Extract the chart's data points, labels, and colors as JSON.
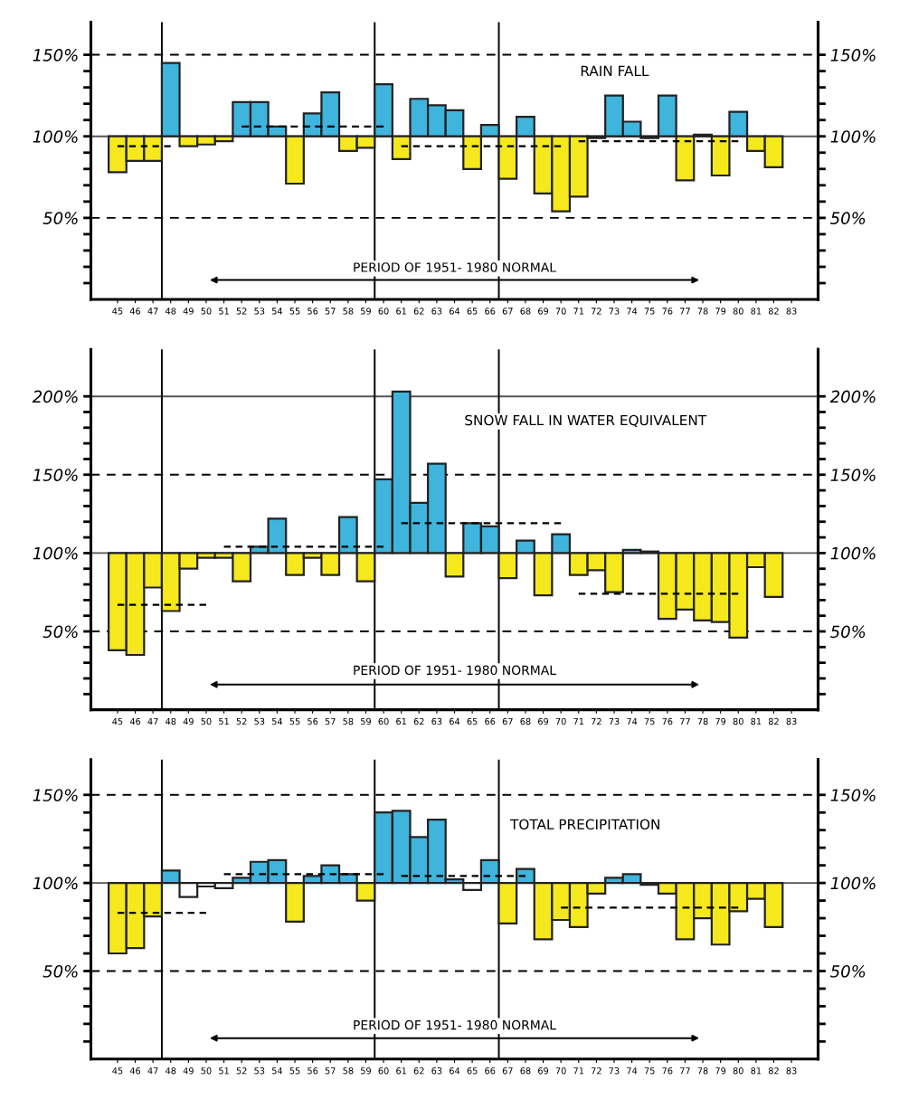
{
  "chart_data": [
    {
      "type": "bar",
      "title": "RAIN FALL",
      "annotations": [
        "PERIOD OF 1951- 1980 NORMAL"
      ],
      "categories": [
        "45",
        "46",
        "47",
        "48",
        "49",
        "50",
        "51",
        "52",
        "53",
        "54",
        "55",
        "56",
        "57",
        "58",
        "59",
        "60",
        "61",
        "62",
        "63",
        "64",
        "65",
        "66",
        "67",
        "68",
        "69",
        "70",
        "71",
        "72",
        "73",
        "74",
        "75",
        "76",
        "77",
        "78",
        "79",
        "80",
        "81",
        "82",
        "83"
      ],
      "series": [
        {
          "type": "bar",
          "values": [
            -22,
            -15,
            -15,
            45,
            -6,
            -5,
            -3,
            21,
            21,
            6,
            -29,
            14,
            27,
            -9,
            -7,
            32,
            -14,
            23,
            19,
            16,
            -20,
            7,
            -26,
            12,
            -35,
            -46,
            -37,
            -1,
            25,
            9,
            -1,
            25,
            -27,
            1,
            -24,
            15,
            -9,
            -19,
            null
          ],
          "base": [
            100,
            100,
            100,
            100,
            100,
            100,
            100,
            100,
            100,
            100,
            100,
            100,
            100,
            100,
            100,
            100,
            100,
            100,
            100,
            100,
            100,
            100,
            100,
            100,
            100,
            100,
            100,
            100,
            100,
            100,
            100,
            100,
            100,
            100,
            100,
            100,
            100,
            100,
            null
          ],
          "colors": [
            "#f5e81c",
            "#f5e81c",
            "#f5e81c",
            "#3fb4dc",
            "#f5e81c",
            "#f5e81c",
            "#f5e81c",
            "#3fb4dc",
            "#3fb4dc",
            "#3fb4dc",
            "#f5e81c",
            "#3fb4dc",
            "#3fb4dc",
            "#f5e81c",
            "#f5e81c",
            "#3fb4dc",
            "#f5e81c",
            "#3fb4dc",
            "#3fb4dc",
            "#3fb4dc",
            "#f5e81c",
            "#3fb4dc",
            "#f5e81c",
            "#3fb4dc",
            "#f5e81c",
            "#f5e81c",
            "#f5e81c",
            "#f5e81c",
            "#3fb4dc",
            "#3fb4dc",
            "#f5e81c",
            "#3fb4dc",
            "#f5e81c",
            "#3fb4dc",
            "#f5e81c",
            "#3fb4dc",
            "#f5e81c",
            "#f5e81c",
            null
          ]
        },
        {
          "type": "line",
          "x": [
            "45",
            "48"
          ],
          "values": [
            94,
            94
          ],
          "color": "#000000",
          "line_style": "dashed"
        },
        {
          "type": "line",
          "x": [
            "52",
            "60"
          ],
          "values": [
            106,
            106
          ],
          "color": "#000000",
          "line_style": "dashed"
        },
        {
          "type": "line",
          "x": [
            "61",
            "70"
          ],
          "values": [
            94,
            94
          ],
          "color": "#000000",
          "line_style": "dashed"
        },
        {
          "type": "line",
          "x": [
            "71",
            "80"
          ],
          "values": [
            97,
            97
          ],
          "color": "#000000",
          "line_style": "dashed"
        }
      ],
      "ylim": [
        0,
        170
      ],
      "yticks": [
        {
          "value": 10,
          "label": null
        },
        {
          "value": 20,
          "label": null
        },
        {
          "value": 30,
          "label": null
        },
        {
          "value": 40,
          "label": null
        },
        {
          "value": 50,
          "label": "50%"
        },
        {
          "value": 60,
          "label": null
        },
        {
          "value": 70,
          "label": null
        },
        {
          "value": 80,
          "label": null
        },
        {
          "value": 90,
          "label": null
        },
        {
          "value": 100,
          "label": "100%"
        },
        {
          "value": 110,
          "label": null
        },
        {
          "value": 120,
          "label": null
        },
        {
          "value": 130,
          "label": null
        },
        {
          "value": 140,
          "label": null
        },
        {
          "value": 150,
          "label": "150%"
        }
      ],
      "y2lim": [
        0,
        170
      ],
      "y2ticks": [
        {
          "value": 10,
          "label": null
        },
        {
          "value": 20,
          "label": null
        },
        {
          "value": 30,
          "label": null
        },
        {
          "value": 40,
          "label": null
        },
        {
          "value": 50,
          "label": "50%"
        },
        {
          "value": 60,
          "label": null
        },
        {
          "value": 70,
          "label": null
        },
        {
          "value": 80,
          "label": null
        },
        {
          "value": 90,
          "label": null
        },
        {
          "value": 100,
          "label": "100%"
        },
        {
          "value": 110,
          "label": null
        },
        {
          "value": 120,
          "label": null
        },
        {
          "value": 130,
          "label": null
        },
        {
          "value": 140,
          "label": null
        },
        {
          "value": 150,
          "label": "150%"
        }
      ],
      "ref_lines": [
        {
          "axis": "y",
          "value": 150,
          "line_style": "dashed",
          "color": "#000000"
        },
        {
          "axis": "y",
          "value": 100,
          "line_style": "solid",
          "color": "#555555"
        },
        {
          "axis": "y",
          "value": 50,
          "line_style": "dashed",
          "color": "#000000"
        },
        {
          "axis": "x",
          "value": "48",
          "line_style": "solid",
          "color": "#000000"
        },
        {
          "axis": "x",
          "value": "60",
          "line_style": "solid",
          "color": "#000000"
        },
        {
          "axis": "x",
          "value": "67",
          "line_style": "solid",
          "color": "#000000"
        }
      ]
    },
    {
      "type": "bar",
      "title": "SNOW FALL IN WATER EQUIVALENT",
      "annotations": [
        "PERIOD OF 1951- 1980 NORMAL"
      ],
      "categories": [
        "45",
        "46",
        "47",
        "48",
        "49",
        "50",
        "51",
        "52",
        "53",
        "54",
        "55",
        "56",
        "57",
        "58",
        "59",
        "60",
        "61",
        "62",
        "63",
        "64",
        "65",
        "66",
        "67",
        "68",
        "69",
        "70",
        "71",
        "72",
        "73",
        "74",
        "75",
        "76",
        "77",
        "78",
        "79",
        "80",
        "81",
        "82",
        "83"
      ],
      "series": [
        {
          "type": "bar",
          "values": [
            -62,
            -65,
            -22,
            -37,
            -10,
            -3,
            -3,
            -18,
            4,
            22,
            -14,
            -3,
            -14,
            23,
            -18,
            47,
            103,
            32,
            57,
            -15,
            19,
            17,
            -16,
            8,
            -27,
            12,
            -14,
            -11,
            -25,
            2,
            1,
            -42,
            -36,
            -43,
            -44,
            -54,
            -9,
            -28,
            null
          ],
          "base": [
            100,
            100,
            100,
            100,
            100,
            100,
            100,
            100,
            100,
            100,
            100,
            100,
            100,
            100,
            100,
            100,
            100,
            100,
            100,
            100,
            100,
            100,
            100,
            100,
            100,
            100,
            100,
            100,
            100,
            100,
            100,
            100,
            100,
            100,
            100,
            100,
            100,
            100,
            null
          ],
          "colors": [
            "#f5e81c",
            "#f5e81c",
            "#f5e81c",
            "#f5e81c",
            "#f5e81c",
            "#f5e81c",
            "#f5e81c",
            "#f5e81c",
            "#3fb4dc",
            "#3fb4dc",
            "#f5e81c",
            "#f5e81c",
            "#f5e81c",
            "#3fb4dc",
            "#f5e81c",
            "#3fb4dc",
            "#3fb4dc",
            "#3fb4dc",
            "#3fb4dc",
            "#f5e81c",
            "#3fb4dc",
            "#3fb4dc",
            "#f5e81c",
            "#3fb4dc",
            "#f5e81c",
            "#3fb4dc",
            "#f5e81c",
            "#f5e81c",
            "#f5e81c",
            "#3fb4dc",
            "#3fb4dc",
            "#f5e81c",
            "#f5e81c",
            "#f5e81c",
            "#f5e81c",
            "#f5e81c",
            "#f5e81c",
            "#f5e81c",
            null
          ]
        },
        {
          "type": "line",
          "x": [
            "45",
            "50"
          ],
          "values": [
            67,
            67
          ],
          "color": "#000000",
          "line_style": "dashed"
        },
        {
          "type": "line",
          "x": [
            "51",
            "60"
          ],
          "values": [
            104,
            104
          ],
          "color": "#000000",
          "line_style": "dashed"
        },
        {
          "type": "line",
          "x": [
            "61",
            "70"
          ],
          "values": [
            119,
            119
          ],
          "color": "#000000",
          "line_style": "dashed"
        },
        {
          "type": "line",
          "x": [
            "71",
            "80"
          ],
          "values": [
            74,
            74
          ],
          "color": "#000000",
          "line_style": "dashed"
        }
      ],
      "ylim": [
        0,
        230
      ],
      "yticks": [
        {
          "value": 10,
          "label": null
        },
        {
          "value": 20,
          "label": null
        },
        {
          "value": 30,
          "label": null
        },
        {
          "value": 40,
          "label": null
        },
        {
          "value": 50,
          "label": "50%"
        },
        {
          "value": 60,
          "label": null
        },
        {
          "value": 70,
          "label": null
        },
        {
          "value": 80,
          "label": null
        },
        {
          "value": 90,
          "label": null
        },
        {
          "value": 100,
          "label": "100%"
        },
        {
          "value": 110,
          "label": null
        },
        {
          "value": 120,
          "label": null
        },
        {
          "value": 130,
          "label": null
        },
        {
          "value": 140,
          "label": null
        },
        {
          "value": 150,
          "label": "150%"
        },
        {
          "value": 160,
          "label": null
        },
        {
          "value": 170,
          "label": null
        },
        {
          "value": 180,
          "label": null
        },
        {
          "value": 190,
          "label": null
        },
        {
          "value": 200,
          "label": "200%"
        }
      ],
      "y2lim": [
        0,
        230
      ],
      "y2ticks": [
        {
          "value": 10,
          "label": null
        },
        {
          "value": 20,
          "label": null
        },
        {
          "value": 30,
          "label": null
        },
        {
          "value": 40,
          "label": null
        },
        {
          "value": 50,
          "label": "50%"
        },
        {
          "value": 60,
          "label": null
        },
        {
          "value": 70,
          "label": null
        },
        {
          "value": 80,
          "label": null
        },
        {
          "value": 90,
          "label": null
        },
        {
          "value": 100,
          "label": "100%"
        },
        {
          "value": 110,
          "label": null
        },
        {
          "value": 120,
          "label": null
        },
        {
          "value": 130,
          "label": null
        },
        {
          "value": 140,
          "label": null
        },
        {
          "value": 150,
          "label": "150%"
        },
        {
          "value": 160,
          "label": null
        },
        {
          "value": 170,
          "label": null
        },
        {
          "value": 180,
          "label": null
        },
        {
          "value": 190,
          "label": null
        },
        {
          "value": 200,
          "label": "200%"
        }
      ],
      "ref_lines": [
        {
          "axis": "y",
          "value": 200,
          "line_style": "solid",
          "color": "#555555"
        },
        {
          "axis": "y",
          "value": 150,
          "line_style": "dashed",
          "color": "#000000"
        },
        {
          "axis": "y",
          "value": 100,
          "line_style": "solid",
          "color": "#555555"
        },
        {
          "axis": "y",
          "value": 50,
          "line_style": "dashed",
          "color": "#000000"
        },
        {
          "axis": "x",
          "value": "48",
          "line_style": "solid",
          "color": "#000000"
        },
        {
          "axis": "x",
          "value": "60",
          "line_style": "solid",
          "color": "#000000"
        },
        {
          "axis": "x",
          "value": "67",
          "line_style": "solid",
          "color": "#000000"
        }
      ]
    },
    {
      "type": "bar",
      "title": "TOTAL PRECIPITATION",
      "annotations": [
        "PERIOD OF 1951- 1980 NORMAL"
      ],
      "categories": [
        "45",
        "46",
        "47",
        "48",
        "49",
        "50",
        "51",
        "52",
        "53",
        "54",
        "55",
        "56",
        "57",
        "58",
        "59",
        "60",
        "61",
        "62",
        "63",
        "64",
        "65",
        "66",
        "67",
        "68",
        "69",
        "70",
        "71",
        "72",
        "73",
        "74",
        "75",
        "76",
        "77",
        "78",
        "79",
        "80",
        "81",
        "82",
        "83"
      ],
      "series": [
        {
          "type": "bar",
          "values": [
            -40,
            -37,
            -19,
            7,
            -8,
            -2,
            -3,
            3,
            12,
            13,
            -22,
            4,
            10,
            5,
            -10,
            40,
            41,
            26,
            36,
            2,
            -4,
            13,
            -23,
            8,
            -32,
            -21,
            -25,
            -6,
            3,
            5,
            -1,
            -6,
            -32,
            -20,
            -35,
            -16,
            -9,
            -25,
            null
          ],
          "base": [
            100,
            100,
            100,
            100,
            100,
            100,
            100,
            100,
            100,
            100,
            100,
            100,
            100,
            100,
            100,
            100,
            100,
            100,
            100,
            100,
            100,
            100,
            100,
            100,
            100,
            100,
            100,
            100,
            100,
            100,
            100,
            100,
            100,
            100,
            100,
            100,
            100,
            100,
            null
          ],
          "colors": [
            "#f5e81c",
            "#f5e81c",
            "#f5e81c",
            "#3fb4dc",
            "#ffffff",
            "#ffffff",
            "#ffffff",
            "#3fb4dc",
            "#3fb4dc",
            "#3fb4dc",
            "#f5e81c",
            "#3fb4dc",
            "#3fb4dc",
            "#3fb4dc",
            "#f5e81c",
            "#3fb4dc",
            "#3fb4dc",
            "#3fb4dc",
            "#3fb4dc",
            "#3fb4dc",
            "#ffffff",
            "#3fb4dc",
            "#f5e81c",
            "#3fb4dc",
            "#f5e81c",
            "#f5e81c",
            "#f5e81c",
            "#f5e81c",
            "#3fb4dc",
            "#3fb4dc",
            "#f5e81c",
            "#f5e81c",
            "#f5e81c",
            "#f5e81c",
            "#f5e81c",
            "#f5e81c",
            "#f5e81c",
            "#f5e81c",
            null
          ]
        },
        {
          "type": "line",
          "x": [
            "45",
            "50"
          ],
          "values": [
            83,
            83
          ],
          "color": "#000000",
          "line_style": "dashed"
        },
        {
          "type": "line",
          "x": [
            "51",
            "60"
          ],
          "values": [
            105,
            105
          ],
          "color": "#000000",
          "line_style": "dashed"
        },
        {
          "type": "line",
          "x": [
            "61",
            "68"
          ],
          "values": [
            104,
            104
          ],
          "color": "#000000",
          "line_style": "dashed"
        },
        {
          "type": "line",
          "x": [
            "70",
            "80"
          ],
          "values": [
            86,
            86
          ],
          "color": "#000000",
          "line_style": "dashed"
        }
      ],
      "ylim": [
        0,
        170
      ],
      "yticks": [
        {
          "value": 10,
          "label": null
        },
        {
          "value": 20,
          "label": null
        },
        {
          "value": 30,
          "label": null
        },
        {
          "value": 40,
          "label": null
        },
        {
          "value": 50,
          "label": "50%"
        },
        {
          "value": 60,
          "label": null
        },
        {
          "value": 70,
          "label": null
        },
        {
          "value": 80,
          "label": null
        },
        {
          "value": 90,
          "label": null
        },
        {
          "value": 100,
          "label": "100%"
        },
        {
          "value": 110,
          "label": null
        },
        {
          "value": 120,
          "label": null
        },
        {
          "value": 130,
          "label": null
        },
        {
          "value": 140,
          "label": null
        },
        {
          "value": 150,
          "label": "150%"
        }
      ],
      "y2lim": [
        0,
        170
      ],
      "y2ticks": [
        {
          "value": 10,
          "label": null
        },
        {
          "value": 20,
          "label": null
        },
        {
          "value": 30,
          "label": null
        },
        {
          "value": 40,
          "label": null
        },
        {
          "value": 50,
          "label": "50%"
        },
        {
          "value": 60,
          "label": null
        },
        {
          "value": 70,
          "label": null
        },
        {
          "value": 80,
          "label": null
        },
        {
          "value": 90,
          "label": null
        },
        {
          "value": 100,
          "label": "100%"
        },
        {
          "value": 110,
          "label": null
        },
        {
          "value": 120,
          "label": null
        },
        {
          "value": 130,
          "label": null
        },
        {
          "value": 140,
          "label": null
        },
        {
          "value": 150,
          "label": "150%"
        }
      ],
      "ref_lines": [
        {
          "axis": "y",
          "value": 150,
          "line_style": "dashed",
          "color": "#000000"
        },
        {
          "axis": "y",
          "value": 100,
          "line_style": "solid",
          "color": "#555555"
        },
        {
          "axis": "y",
          "value": 50,
          "line_style": "dashed",
          "color": "#000000"
        },
        {
          "axis": "x",
          "value": "48",
          "line_style": "solid",
          "color": "#000000"
        },
        {
          "axis": "x",
          "value": "60",
          "line_style": "solid",
          "color": "#000000"
        },
        {
          "axis": "x",
          "value": "67",
          "line_style": "solid",
          "color": "#000000"
        }
      ]
    }
  ]
}
